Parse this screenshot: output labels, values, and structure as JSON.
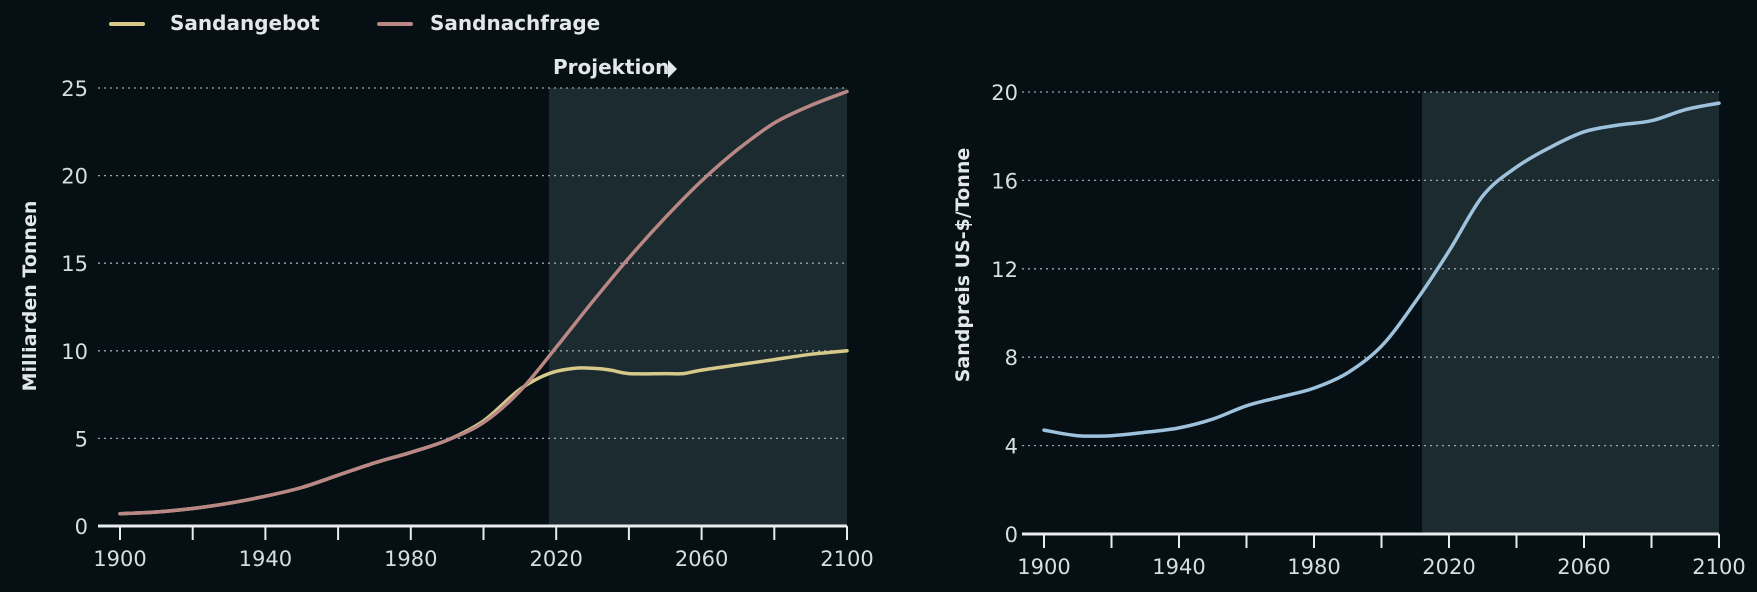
{
  "legend": {
    "items": [
      {
        "label": "Sandangebot",
        "color": "#d6c98a"
      },
      {
        "label": "Sandnachfrage",
        "color": "#b98784"
      }
    ]
  },
  "projection_label": "Projektion",
  "chart_data": [
    {
      "type": "line",
      "title": "",
      "xlabel": "",
      "ylabel": "Milliarden Tonnen",
      "xlim": [
        1900,
        2100
      ],
      "ylim": [
        0,
        25
      ],
      "x_ticks": [
        1900,
        1940,
        1980,
        2020,
        2060,
        2100
      ],
      "y_ticks": [
        0,
        5,
        10,
        15,
        20,
        25
      ],
      "grid": true,
      "projection_start": 2018,
      "series": [
        {
          "name": "Sandangebot",
          "color": "#d6c98a",
          "x": [
            1900,
            1910,
            1920,
            1930,
            1940,
            1950,
            1960,
            1970,
            1980,
            1990,
            2000,
            2010,
            2018,
            2025,
            2030,
            2035,
            2040,
            2050,
            2055,
            2060,
            2070,
            2080,
            2090,
            2100
          ],
          "y": [
            0.7,
            0.8,
            1.0,
            1.3,
            1.7,
            2.2,
            2.9,
            3.6,
            4.2,
            4.9,
            6.0,
            7.8,
            8.7,
            9.0,
            9.0,
            8.9,
            8.7,
            8.7,
            8.7,
            8.9,
            9.2,
            9.5,
            9.8,
            10.0
          ]
        },
        {
          "name": "Sandnachfrage",
          "color": "#b98784",
          "x": [
            1900,
            1910,
            1920,
            1930,
            1940,
            1950,
            1960,
            1970,
            1980,
            1990,
            2000,
            2010,
            2020,
            2030,
            2040,
            2050,
            2060,
            2070,
            2080,
            2090,
            2100
          ],
          "y": [
            0.7,
            0.8,
            1.0,
            1.3,
            1.7,
            2.2,
            2.9,
            3.6,
            4.2,
            4.9,
            5.9,
            7.7,
            10.2,
            12.8,
            15.3,
            17.6,
            19.7,
            21.5,
            23.0,
            24.0,
            24.8
          ]
        }
      ]
    },
    {
      "type": "line",
      "title": "",
      "xlabel": "",
      "ylabel": "Sandpreis US-$/Tonne",
      "xlim": [
        1900,
        2100
      ],
      "ylim": [
        0,
        20
      ],
      "x_ticks": [
        1900,
        1940,
        1980,
        2020,
        2060,
        2100
      ],
      "y_ticks": [
        0,
        4,
        8,
        12,
        16,
        20
      ],
      "grid": true,
      "projection_start": 2012,
      "series": [
        {
          "name": "Sandpreis",
          "color": "#9ec1dc",
          "x": [
            1900,
            1910,
            1920,
            1930,
            1940,
            1950,
            1960,
            1970,
            1980,
            1990,
            2000,
            2010,
            2020,
            2030,
            2040,
            2050,
            2060,
            2070,
            2080,
            2090,
            2100
          ],
          "y": [
            4.7,
            4.45,
            4.45,
            4.6,
            4.8,
            5.2,
            5.8,
            6.2,
            6.6,
            7.3,
            8.5,
            10.5,
            12.8,
            15.3,
            16.6,
            17.5,
            18.2,
            18.5,
            18.7,
            19.2,
            19.5
          ]
        }
      ]
    }
  ]
}
